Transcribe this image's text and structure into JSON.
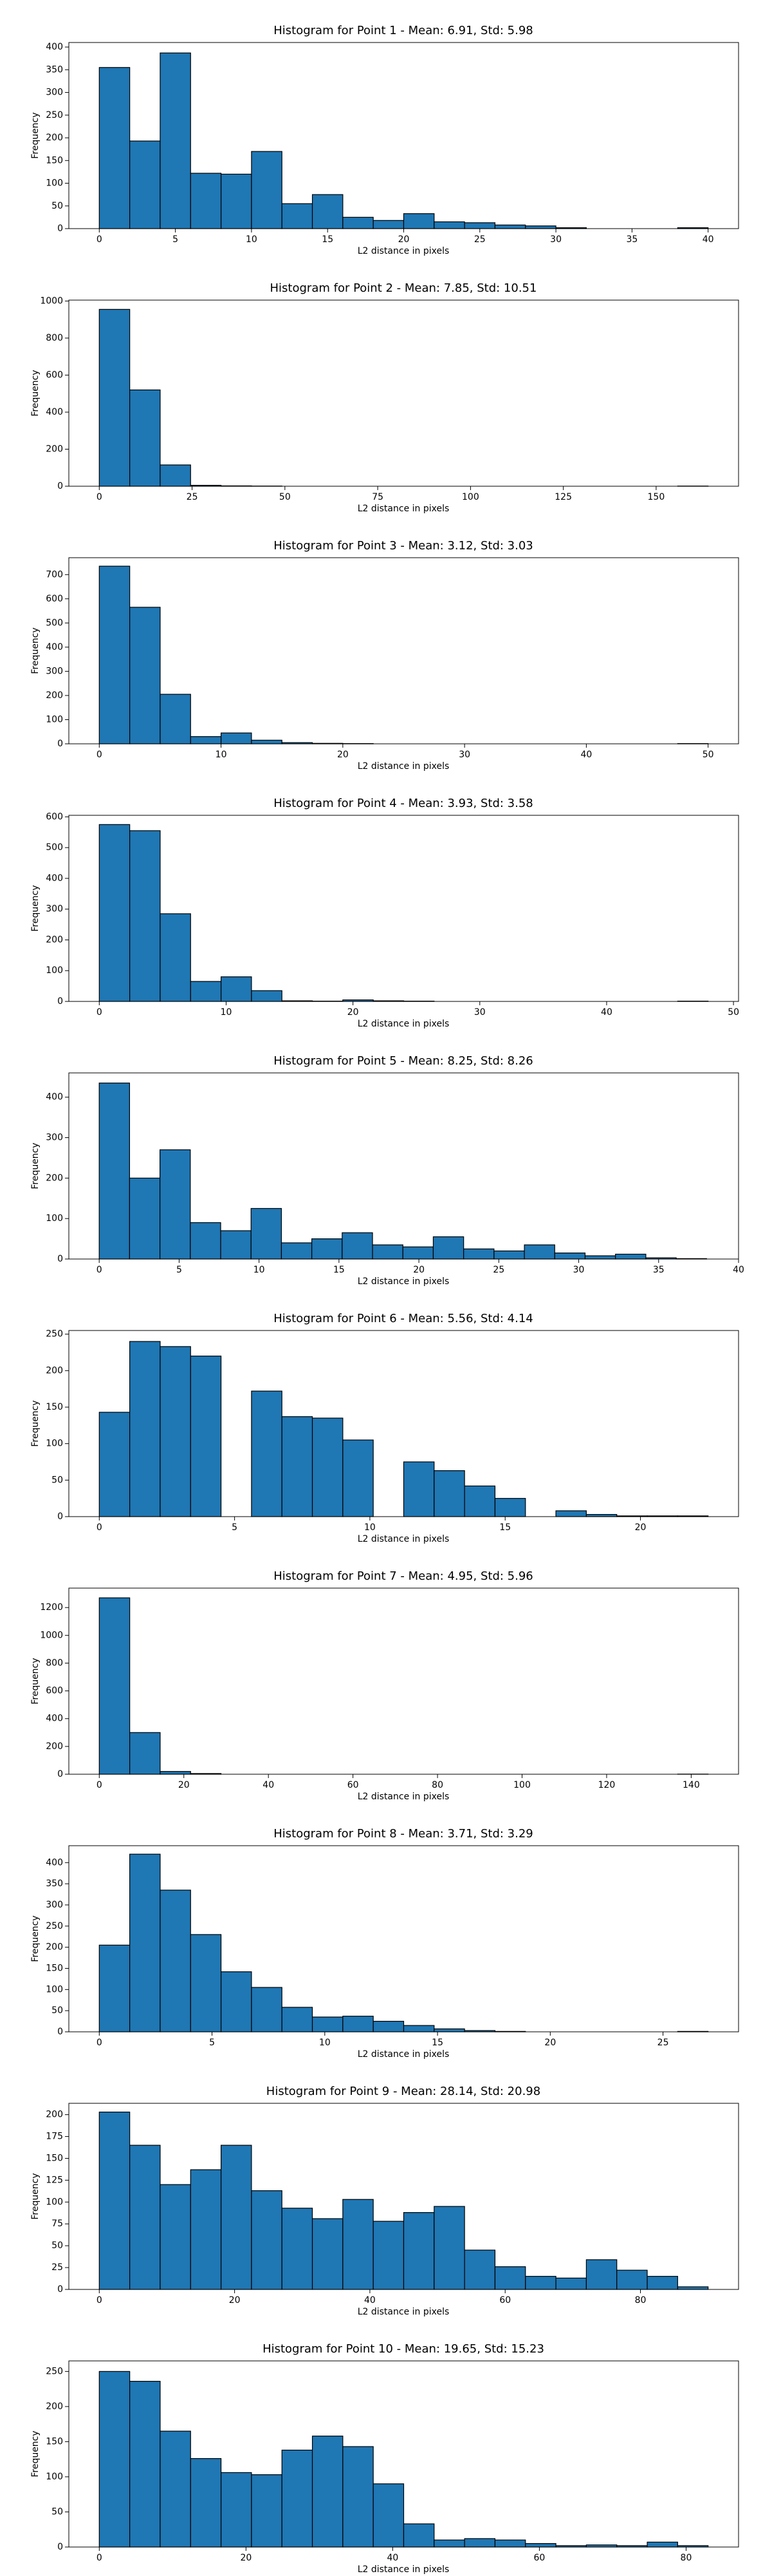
{
  "chart_data": [
    {
      "type": "histogram",
      "title": "Histogram for Point 1 - Mean: 6.91, Std: 5.98",
      "x_label": "L2 distance in pixels",
      "y_label": "Frequency",
      "color": "#1f77b4",
      "bins": [
        0,
        2,
        4,
        6,
        8,
        10,
        12,
        14,
        16,
        18,
        20,
        22,
        24,
        26,
        28,
        30,
        32,
        34,
        36,
        38,
        40
      ],
      "values": [
        355,
        193,
        387,
        122,
        120,
        170,
        55,
        75,
        25,
        18,
        33,
        15,
        13,
        8,
        6,
        2,
        0,
        0,
        0,
        2
      ],
      "xlim": [
        -2,
        42
      ],
      "ylim": [
        0,
        410
      ],
      "xticks": [
        0,
        5,
        10,
        15,
        20,
        25,
        30,
        35,
        40
      ],
      "yticks": [
        0,
        50,
        100,
        150,
        200,
        250,
        300,
        350,
        400
      ]
    },
    {
      "type": "histogram",
      "title": "Histogram for Point 2 - Mean: 7.85, Std: 10.51",
      "x_label": "L2 distance in pixels",
      "y_label": "Frequency",
      "color": "#1f77b4",
      "bins": [
        0,
        8.2,
        16.4,
        24.6,
        32.8,
        41,
        49.2,
        57.4,
        65.6,
        73.8,
        82,
        90.2,
        98.4,
        106.6,
        114.8,
        123,
        131.2,
        139.4,
        147.6,
        155.8,
        164
      ],
      "values": [
        955,
        520,
        115,
        5,
        2,
        1,
        0,
        0,
        0,
        0,
        0,
        0,
        0,
        0,
        0,
        0,
        0,
        0,
        0,
        1
      ],
      "xlim": [
        -8.2,
        172.2
      ],
      "ylim": [
        0,
        1005
      ],
      "xticks": [
        0,
        25,
        50,
        75,
        100,
        125,
        150
      ],
      "yticks": [
        0,
        200,
        400,
        600,
        800,
        1000
      ]
    },
    {
      "type": "histogram",
      "title": "Histogram for Point 3 - Mean: 3.12, Std: 3.03",
      "x_label": "L2 distance in pixels",
      "y_label": "Frequency",
      "color": "#1f77b4",
      "bins": [
        0,
        2.5,
        5,
        7.5,
        10,
        12.5,
        15,
        17.5,
        20,
        22.5,
        25,
        27.5,
        30,
        32.5,
        35,
        37.5,
        40,
        42.5,
        45,
        47.5,
        50
      ],
      "values": [
        735,
        565,
        205,
        30,
        45,
        15,
        5,
        2,
        1,
        0,
        0,
        0,
        0,
        0,
        0,
        0,
        0,
        0,
        0,
        1
      ],
      "xlim": [
        -2.5,
        52.5
      ],
      "ylim": [
        0,
        770
      ],
      "xticks": [
        0,
        10,
        20,
        30,
        40,
        50
      ],
      "yticks": [
        0,
        100,
        200,
        300,
        400,
        500,
        600,
        700
      ]
    },
    {
      "type": "histogram",
      "title": "Histogram for Point 4 - Mean: 3.93, Std: 3.58",
      "x_label": "L2 distance in pixels",
      "y_label": "Frequency",
      "color": "#1f77b4",
      "bins": [
        0,
        2.4,
        4.8,
        7.2,
        9.6,
        12,
        14.4,
        16.8,
        19.2,
        21.6,
        24,
        26.4,
        28.8,
        31.2,
        33.6,
        36,
        38.4,
        40.8,
        43.2,
        45.6,
        48
      ],
      "values": [
        575,
        555,
        285,
        65,
        80,
        35,
        2,
        1,
        5,
        2,
        1,
        0,
        0,
        0,
        0,
        0,
        0,
        0,
        0,
        1
      ],
      "xlim": [
        -2.4,
        50.4
      ],
      "ylim": [
        0,
        605
      ],
      "xticks": [
        0,
        10,
        20,
        30,
        40,
        50
      ],
      "yticks": [
        0,
        100,
        200,
        300,
        400,
        500,
        600
      ]
    },
    {
      "type": "histogram",
      "title": "Histogram for Point 5 - Mean: 8.25, Std: 8.26",
      "x_label": "L2 distance in pixels",
      "y_label": "Frequency",
      "color": "#1f77b4",
      "bins": [
        0,
        1.9,
        3.8,
        5.7,
        7.6,
        9.5,
        11.4,
        13.3,
        15.2,
        17.1,
        19,
        20.9,
        22.8,
        24.7,
        26.6,
        28.5,
        30.4,
        32.3,
        34.2,
        36.1,
        38
      ],
      "values": [
        435,
        200,
        270,
        90,
        70,
        125,
        40,
        50,
        65,
        35,
        30,
        55,
        25,
        20,
        35,
        15,
        8,
        12,
        3,
        1
      ],
      "xlim": [
        -1.9,
        40
      ],
      "ylim": [
        0,
        460
      ],
      "xticks": [
        0,
        5,
        10,
        15,
        20,
        25,
        30,
        35,
        40
      ],
      "yticks": [
        0,
        100,
        200,
        300,
        400
      ]
    },
    {
      "type": "histogram",
      "title": "Histogram for Point 6 - Mean: 5.56, Std: 4.14",
      "x_label": "L2 distance in pixels",
      "y_label": "Frequency",
      "color": "#1f77b4",
      "bins": [
        0,
        1.125,
        2.25,
        3.375,
        4.5,
        5.625,
        6.75,
        7.875,
        9,
        10.125,
        11.25,
        12.375,
        13.5,
        14.625,
        15.75,
        16.875,
        18,
        19.125,
        20.25,
        21.375,
        22.5
      ],
      "values": [
        143,
        240,
        233,
        220,
        0,
        172,
        137,
        135,
        105,
        0,
        75,
        63,
        42,
        25,
        0,
        8,
        3,
        1,
        1,
        1
      ],
      "xlim": [
        -1.125,
        23.625
      ],
      "ylim": [
        0,
        255
      ],
      "xticks": [
        0,
        5,
        10,
        15,
        20
      ],
      "yticks": [
        0,
        50,
        100,
        150,
        200,
        250
      ]
    },
    {
      "type": "histogram",
      "title": "Histogram for Point 7 - Mean: 4.95, Std: 5.96",
      "x_label": "L2 distance in pixels",
      "y_label": "Frequency",
      "color": "#1f77b4",
      "bins": [
        0,
        7.2,
        14.4,
        21.6,
        28.8,
        36,
        43.2,
        50.4,
        57.6,
        64.8,
        72,
        79.2,
        86.4,
        93.6,
        100.8,
        108,
        115.2,
        122.4,
        129.6,
        136.8,
        144
      ],
      "values": [
        1270,
        300,
        20,
        5,
        0,
        0,
        0,
        0,
        0,
        0,
        0,
        0,
        0,
        0,
        0,
        0,
        0,
        0,
        0,
        1
      ],
      "xlim": [
        -7.2,
        151.2
      ],
      "ylim": [
        0,
        1340
      ],
      "xticks": [
        0,
        20,
        40,
        60,
        80,
        100,
        120,
        140
      ],
      "yticks": [
        0,
        200,
        400,
        600,
        800,
        1000,
        1200
      ]
    },
    {
      "type": "histogram",
      "title": "Histogram for Point 8 - Mean: 3.71, Std: 3.29",
      "x_label": "L2 distance in pixels",
      "y_label": "Frequency",
      "color": "#1f77b4",
      "bins": [
        0,
        1.35,
        2.7,
        4.05,
        5.4,
        6.75,
        8.1,
        9.45,
        10.8,
        12.15,
        13.5,
        14.85,
        16.2,
        17.55,
        18.9,
        20.25,
        21.6,
        22.95,
        24.3,
        25.65,
        27
      ],
      "values": [
        205,
        420,
        335,
        230,
        142,
        105,
        58,
        35,
        37,
        25,
        15,
        7,
        3,
        1,
        0,
        0,
        0,
        0,
        0,
        1
      ],
      "xlim": [
        -1.35,
        28.35
      ],
      "ylim": [
        0,
        440
      ],
      "xticks": [
        0,
        5,
        10,
        15,
        20,
        25
      ],
      "yticks": [
        0,
        50,
        100,
        150,
        200,
        250,
        300,
        350,
        400
      ]
    },
    {
      "type": "histogram",
      "title": "Histogram for Point 9 - Mean: 28.14, Std: 20.98",
      "x_label": "L2 distance in pixels",
      "y_label": "Frequency",
      "color": "#1f77b4",
      "bins": [
        0,
        4.5,
        9,
        13.5,
        18,
        22.5,
        27,
        31.5,
        36,
        40.5,
        45,
        49.5,
        54,
        58.5,
        63,
        67.5,
        72,
        76.5,
        81,
        85.5,
        90
      ],
      "values": [
        203,
        165,
        120,
        137,
        165,
        113,
        93,
        81,
        103,
        78,
        88,
        95,
        45,
        26,
        15,
        13,
        34,
        22,
        15,
        3
      ],
      "xlim": [
        -4.5,
        94.5
      ],
      "ylim": [
        0,
        213
      ],
      "xticks": [
        0,
        20,
        40,
        60,
        80
      ],
      "yticks": [
        0,
        25,
        50,
        75,
        100,
        125,
        150,
        175,
        200
      ]
    },
    {
      "type": "histogram",
      "title": "Histogram for Point 10 - Mean: 19.65, Std: 15.23",
      "x_label": "L2 distance in pixels",
      "y_label": "Frequency",
      "color": "#1f77b4",
      "bins": [
        0,
        4.15,
        8.3,
        12.45,
        16.6,
        20.75,
        24.9,
        29.05,
        33.2,
        37.35,
        41.5,
        45.65,
        49.8,
        53.95,
        58.1,
        62.25,
        66.4,
        70.55,
        74.7,
        78.85,
        83
      ],
      "values": [
        250,
        236,
        165,
        126,
        106,
        103,
        138,
        158,
        143,
        90,
        33,
        10,
        12,
        10,
        5,
        2,
        3,
        2,
        7,
        2
      ],
      "xlim": [
        -4.15,
        87.15
      ],
      "ylim": [
        0,
        265
      ],
      "xticks": [
        0,
        20,
        40,
        60,
        80
      ],
      "yticks": [
        0,
        50,
        100,
        150,
        200,
        250
      ]
    }
  ]
}
